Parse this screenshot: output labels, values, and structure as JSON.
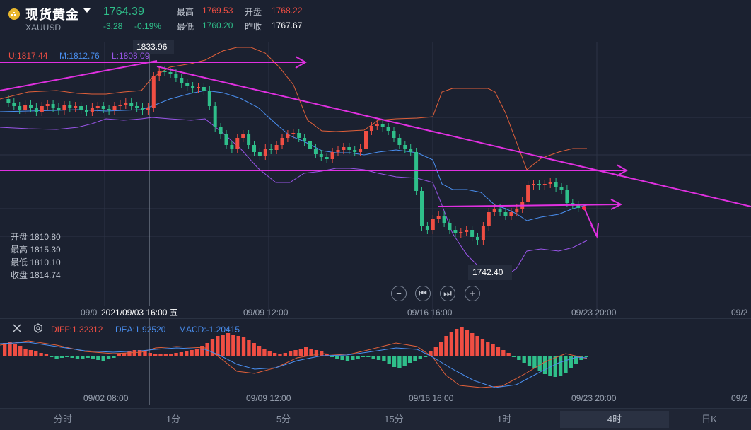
{
  "header": {
    "title": "现货黄金",
    "symbol": "XAUUSD",
    "price": "1764.39",
    "change": "-3.28",
    "change_pct": "-0.19%",
    "high_label": "最高",
    "high": "1769.53",
    "open_label": "开盘",
    "open": "1768.22",
    "low_label": "最低",
    "low": "1760.20",
    "prev_close_label": "昨收",
    "prev_close": "1767.67"
  },
  "boll_legend": {
    "u": "U:1817.44",
    "m": "M:1812.76",
    "l": "L:1808.09"
  },
  "ohlc_panel": {
    "open": "开盘 1810.80",
    "high": "最高 1815.39",
    "low": "最低 1810.10",
    "close": "收盘 1814.74"
  },
  "annotations": {
    "max": "1833.96",
    "min": "1742.40"
  },
  "hover_date": "2021/09/03 16:00 五",
  "x_labels_main": [
    "09/0",
    "09/09 12:00",
    "09/16 16:00",
    "09/23 20:00",
    "09/2"
  ],
  "x_labels_macd": [
    "09/02 08:00",
    "09/09 12:00",
    "09/16 16:00",
    "09/23 20:00",
    "09/2"
  ],
  "macd_legend": {
    "diff": "DIFF:1.32312",
    "dea": "DEA:1.92520",
    "macd": "MACD:-1.20415"
  },
  "controls": [
    "−",
    "⏮",
    "⏭",
    "+"
  ],
  "tabs": [
    "分时",
    "1分",
    "5分",
    "15分",
    "1时",
    "4时",
    "日K"
  ],
  "active_tab": "4时",
  "colors": {
    "up": "#f04e43",
    "down": "#2fbf8a",
    "upper_band": "#e0603a",
    "mid_band": "#4a8ff0",
    "lower_band": "#9a55e8",
    "trendline": "#e030e0",
    "bg": "#1b2130"
  },
  "chart_data": {
    "type": "candlestick",
    "series": [
      {
        "name": "U",
        "values": []
      },
      {
        "name": "M",
        "values": []
      },
      {
        "name": "L",
        "values": []
      }
    ],
    "price_range": [
      1742.4,
      1833.96
    ],
    "indicators": [
      "BOLL",
      "MACD"
    ]
  }
}
